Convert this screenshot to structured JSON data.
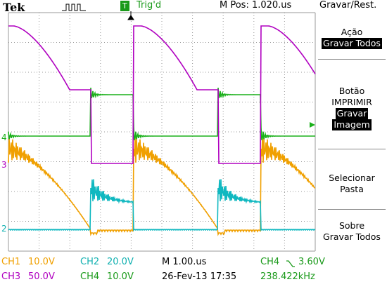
{
  "header": {
    "brand": "Tek",
    "trigger_state": "T",
    "trigger_status": "Trig'd",
    "m_pos": "M Pos: 1.020.us",
    "menu_title": "Gravar/Rest."
  },
  "menu": [
    {
      "label": [
        "Ação"
      ],
      "value": [
        "Gravar Todos"
      ]
    },
    {
      "label": [
        "Botão",
        "IMPRIMIR"
      ],
      "value": [
        "Gravar",
        "Imagem"
      ]
    },
    {
      "label": [
        "Selecionar",
        "Pasta"
      ]
    },
    {
      "label": [
        "Sobre",
        "Gravar Todos"
      ]
    }
  ],
  "markers": [
    "4",
    "3",
    "2"
  ],
  "footer": {
    "ch1": {
      "channel": "CH1",
      "scale": "10.0V"
    },
    "ch2": {
      "channel": "CH2",
      "scale": "20.0V"
    },
    "ch3": {
      "channel": "CH3",
      "scale": "50.0V"
    },
    "ch4": {
      "channel": "CH4",
      "scale": "10.0V"
    },
    "timebase": "M 1.00.us",
    "date": "26-Fev-13 17:35",
    "trigger": {
      "channel": "CH4",
      "level": "3.60V"
    },
    "frequency": "238.422kHz"
  }
}
